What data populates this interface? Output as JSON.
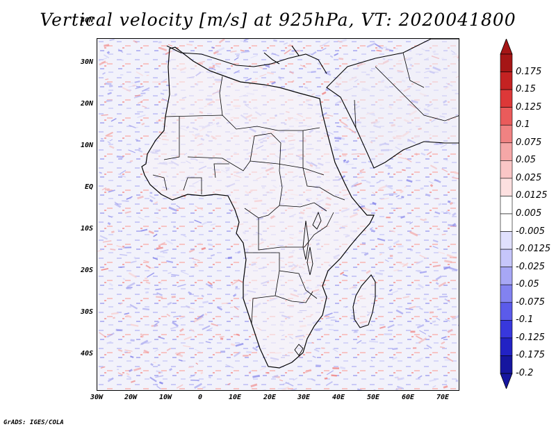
{
  "title": "Vertical velocity [m/s] at 925hPa, VT: 2020041800",
  "footer": "GrADS: IGES/COLA",
  "lat_labels": [
    "40N",
    "30N",
    "20N",
    "10N",
    "EQ",
    "10S",
    "20S",
    "30S",
    "40S"
  ],
  "lon_labels": [
    "30W",
    "20W",
    "10W",
    "0",
    "10E",
    "20E",
    "30E",
    "40E",
    "50E",
    "60E",
    "70E"
  ],
  "colorbar": {
    "labels": [
      "0.175",
      "0.15",
      "0.125",
      "0.1",
      "0.075",
      "0.05",
      "0.025",
      "0.0125",
      "0.005",
      "-0.005",
      "-0.0125",
      "-0.025",
      "-0.05",
      "-0.075",
      "-0.1",
      "-0.125",
      "-0.175",
      "-0.2"
    ],
    "colors": [
      "#a51616",
      "#c42222",
      "#dd3838",
      "#ea5b5b",
      "#f08282",
      "#f5a7a7",
      "#fac6c6",
      "#fde0e0",
      "#ffffff",
      "#ffffff",
      "#e0e0fd",
      "#c6c6fa",
      "#a7a7f5",
      "#8282f0",
      "#5b5bea",
      "#3838dd",
      "#2222c4",
      "#16169f"
    ]
  },
  "map_colors": {
    "ocean_base": "#f2f2fb",
    "land_base": "#f6f3f6",
    "border": "#000000"
  }
}
